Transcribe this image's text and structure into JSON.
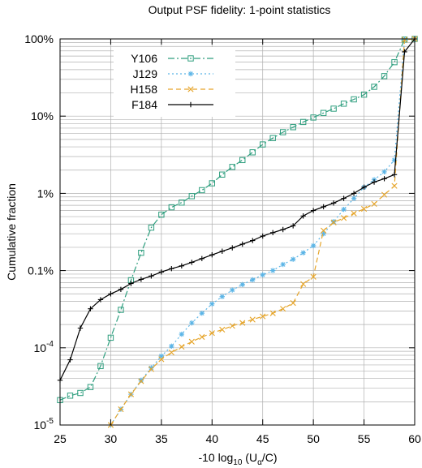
{
  "chart_data": {
    "type": "line",
    "title": "Output PSF fidelity: 1-point statistics",
    "xlabel": {
      "prefix": "-10 log",
      "sub1": "10",
      "mid": " (U",
      "sub2": "α",
      "suffix": "/C)"
    },
    "ylabel": "Cumulative fraction",
    "xlim": [
      25,
      60
    ],
    "ylim": [
      1e-05,
      1
    ],
    "y_scale": "log",
    "grid": true,
    "legend_position": "top-left",
    "x_ticks": [
      {
        "value": 25,
        "label": "25"
      },
      {
        "value": 30,
        "label": "30"
      },
      {
        "value": 35,
        "label": "35"
      },
      {
        "value": 40,
        "label": "40"
      },
      {
        "value": 45,
        "label": "45"
      },
      {
        "value": 50,
        "label": "50"
      },
      {
        "value": 55,
        "label": "55"
      },
      {
        "value": 60,
        "label": "60"
      }
    ],
    "y_ticks": [
      {
        "value": 1e-05,
        "base": "10",
        "exp": "-5"
      },
      {
        "value": 0.0001,
        "base": "10",
        "exp": "-4"
      },
      {
        "value": 0.001,
        "text": "0.1%"
      },
      {
        "value": 0.01,
        "text": "1%"
      },
      {
        "value": 0.1,
        "text": "10%"
      },
      {
        "value": 1,
        "text": "100%"
      }
    ],
    "series": [
      {
        "name": "Y106",
        "color": "#2e9e7e",
        "dash": "8,3,2,3",
        "marker": "square",
        "points": [
          [
            25,
            2.1e-05
          ],
          [
            26,
            2.4e-05
          ],
          [
            27,
            2.6e-05
          ],
          [
            28,
            3.1e-05
          ],
          [
            29,
            5.8e-05
          ],
          [
            30,
            0.000135
          ],
          [
            31,
            0.00031
          ],
          [
            32,
            0.00075
          ],
          [
            33,
            0.0017
          ],
          [
            34,
            0.0036
          ],
          [
            35,
            0.0053
          ],
          [
            36,
            0.0066
          ],
          [
            37,
            0.0076
          ],
          [
            38,
            0.0092
          ],
          [
            39,
            0.011
          ],
          [
            40,
            0.0135
          ],
          [
            41,
            0.0175
          ],
          [
            42,
            0.022
          ],
          [
            43,
            0.027
          ],
          [
            44,
            0.034
          ],
          [
            45,
            0.043
          ],
          [
            46,
            0.052
          ],
          [
            47,
            0.062
          ],
          [
            48,
            0.072
          ],
          [
            49,
            0.084
          ],
          [
            50,
            0.096
          ],
          [
            51,
            0.11
          ],
          [
            52,
            0.125
          ],
          [
            53,
            0.145
          ],
          [
            54,
            0.165
          ],
          [
            55,
            0.19
          ],
          [
            56,
            0.24
          ],
          [
            57,
            0.33
          ],
          [
            58,
            0.5
          ],
          [
            59,
            0.98
          ],
          [
            60,
            1.0
          ]
        ]
      },
      {
        "name": "J129",
        "color": "#5ab4e6",
        "dash": "2,3",
        "marker": "star",
        "points": [
          [
            30,
            1e-05
          ],
          [
            31,
            1.6e-05
          ],
          [
            32,
            2.5e-05
          ],
          [
            33,
            3.8e-05
          ],
          [
            34,
            5.5e-05
          ],
          [
            35,
            7.8e-05
          ],
          [
            36,
            0.000105
          ],
          [
            37,
            0.00015
          ],
          [
            38,
            0.00021
          ],
          [
            39,
            0.00028
          ],
          [
            40,
            0.00037
          ],
          [
            41,
            0.00046
          ],
          [
            42,
            0.00056
          ],
          [
            43,
            0.00066
          ],
          [
            44,
            0.00076
          ],
          [
            45,
            0.00088
          ],
          [
            46,
            0.001
          ],
          [
            47,
            0.0012
          ],
          [
            48,
            0.0014
          ],
          [
            49,
            0.0017
          ],
          [
            50,
            0.0021
          ],
          [
            51,
            0.003
          ],
          [
            52,
            0.0043
          ],
          [
            53,
            0.0062
          ],
          [
            54,
            0.0086
          ],
          [
            55,
            0.012
          ],
          [
            56,
            0.015
          ],
          [
            57,
            0.019
          ],
          [
            58,
            0.027
          ],
          [
            59,
            0.98
          ],
          [
            60,
            1.0
          ]
        ]
      },
      {
        "name": "H158",
        "color": "#e6a52a",
        "dash": "6,4",
        "marker": "cross",
        "points": [
          [
            30,
            1e-05
          ],
          [
            31,
            1.6e-05
          ],
          [
            32,
            2.5e-05
          ],
          [
            33,
            3.7e-05
          ],
          [
            34,
            5.3e-05
          ],
          [
            35,
            7.1e-05
          ],
          [
            36,
            8.7e-05
          ],
          [
            37,
            0.000103
          ],
          [
            38,
            0.00012
          ],
          [
            39,
            0.000138
          ],
          [
            40,
            0.000155
          ],
          [
            41,
            0.000172
          ],
          [
            42,
            0.000192
          ],
          [
            43,
            0.00021
          ],
          [
            44,
            0.000232
          ],
          [
            45,
            0.000255
          ],
          [
            46,
            0.00028
          ],
          [
            47,
            0.00032
          ],
          [
            48,
            0.00038
          ],
          [
            49,
            0.00067
          ],
          [
            50,
            0.00083
          ],
          [
            51,
            0.0033
          ],
          [
            52,
            0.0042
          ],
          [
            53,
            0.0048
          ],
          [
            54,
            0.0055
          ],
          [
            55,
            0.0063
          ],
          [
            56,
            0.0073
          ],
          [
            57,
            0.0096
          ],
          [
            58,
            0.0125
          ],
          [
            59,
            0.98
          ],
          [
            60,
            1.0
          ]
        ]
      },
      {
        "name": "F184",
        "color": "#000000",
        "dash": "",
        "marker": "plus",
        "points": [
          [
            25,
            3.8e-05
          ],
          [
            26,
            7e-05
          ],
          [
            27,
            0.00018
          ],
          [
            28,
            0.00032
          ],
          [
            29,
            0.00042
          ],
          [
            30,
            0.0005
          ],
          [
            31,
            0.00057
          ],
          [
            32,
            0.00068
          ],
          [
            33,
            0.00077
          ],
          [
            34,
            0.00085
          ],
          [
            35,
            0.00096
          ],
          [
            36,
            0.00106
          ],
          [
            37,
            0.00115
          ],
          [
            38,
            0.00128
          ],
          [
            39,
            0.00143
          ],
          [
            40,
            0.0016
          ],
          [
            41,
            0.00178
          ],
          [
            42,
            0.00197
          ],
          [
            43,
            0.0022
          ],
          [
            44,
            0.00245
          ],
          [
            45,
            0.0028
          ],
          [
            46,
            0.0031
          ],
          [
            47,
            0.0034
          ],
          [
            48,
            0.0038
          ],
          [
            49,
            0.0051
          ],
          [
            50,
            0.006
          ],
          [
            51,
            0.0067
          ],
          [
            52,
            0.0075
          ],
          [
            53,
            0.0086
          ],
          [
            54,
            0.01
          ],
          [
            55,
            0.012
          ],
          [
            56,
            0.014
          ],
          [
            57,
            0.0155
          ],
          [
            58,
            0.0175
          ],
          [
            59,
            0.68
          ],
          [
            60,
            1.0
          ]
        ]
      }
    ]
  }
}
